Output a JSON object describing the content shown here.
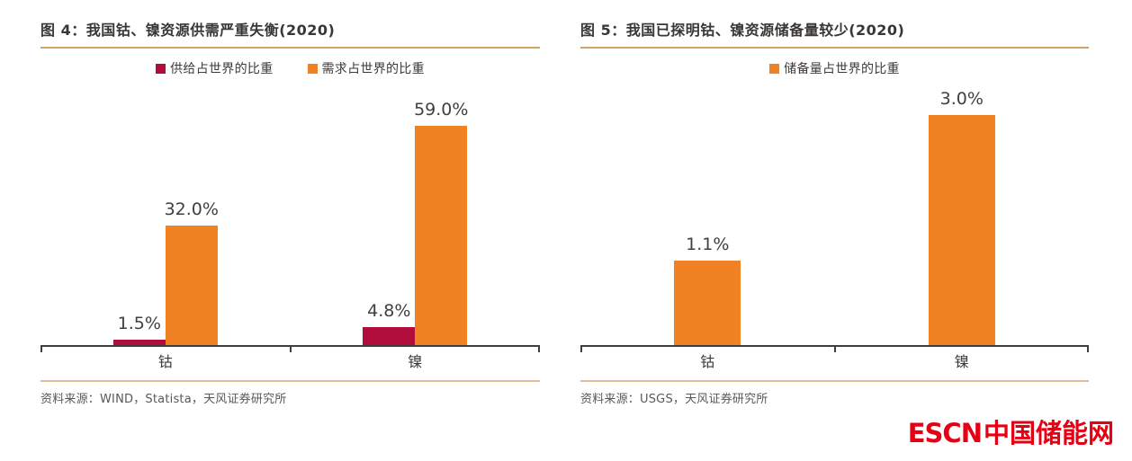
{
  "colors": {
    "orange": "#f08224",
    "crimson": "#b00c3c",
    "gold_rule": "#d2a366",
    "axis": "#3f3f3f",
    "logo_red": "#e60013"
  },
  "chart_data": [
    {
      "type": "bar",
      "title": "图 4：我国钴、镍资源供需严重失衡(2020)",
      "categories": [
        "钴",
        "镍"
      ],
      "series": [
        {
          "name": "供给占世界的比重",
          "color_key": "crimson",
          "values": [
            1.5,
            4.8
          ],
          "labels": [
            "1.5%",
            "4.8%"
          ]
        },
        {
          "name": "需求占世界的比重",
          "color_key": "orange",
          "values": [
            32.0,
            59.0
          ],
          "labels": [
            "32.0%",
            "59.0%"
          ]
        }
      ],
      "ylim": [
        0,
        70
      ],
      "grid": false,
      "legend_position": "top",
      "source": "资料来源：WIND，Statista，天风证券研究所"
    },
    {
      "type": "bar",
      "title": "图 5：我国已探明钴、镍资源储备量较少(2020)",
      "categories": [
        "钴",
        "镍"
      ],
      "series": [
        {
          "name": "储备量占世界的比重",
          "color_key": "orange",
          "values": [
            1.1,
            3.0
          ],
          "labels": [
            "1.1%",
            "3.0%"
          ]
        }
      ],
      "ylim": [
        0,
        3.4
      ],
      "grid": false,
      "legend_position": "top",
      "source": "资料来源：USGS，天风证券研究所"
    }
  ],
  "footer": {
    "logo_latin": "ESCN",
    "logo_cjk": "中国储能网"
  }
}
